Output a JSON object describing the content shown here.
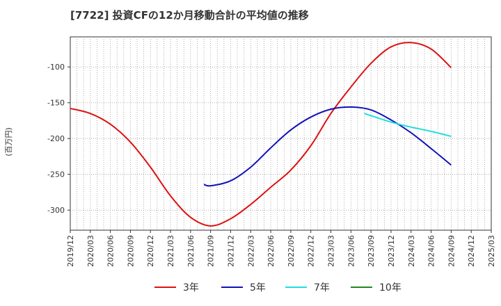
{
  "chart_data": {
    "type": "line",
    "title": "[7722]  投資CFの12か月移動合計の平均値の推移",
    "ylabel": "(百万円)",
    "xlabel": "",
    "xlim": [
      "2019/12",
      "2025/03"
    ],
    "ylim": [
      -328,
      -58
    ],
    "yticks": [
      -100,
      -150,
      -200,
      -250,
      -300
    ],
    "xticks": [
      "2019/12",
      "2020/03",
      "2020/06",
      "2020/09",
      "2020/12",
      "2021/03",
      "2021/06",
      "2021/09",
      "2021/12",
      "2022/03",
      "2022/06",
      "2022/09",
      "2022/12",
      "2023/03",
      "2023/06",
      "2023/09",
      "2023/12",
      "2024/03",
      "2024/06",
      "2024/09",
      "2024/12",
      "2025/03"
    ],
    "grid": true,
    "legend_position": "bottom",
    "series": [
      {
        "name": "3年",
        "color": "#dd1111",
        "points": [
          [
            "2019/12",
            -158
          ],
          [
            "2020/03",
            -165
          ],
          [
            "2020/06",
            -180
          ],
          [
            "2020/09",
            -205
          ],
          [
            "2020/12",
            -240
          ],
          [
            "2021/03",
            -280
          ],
          [
            "2021/06",
            -310
          ],
          [
            "2021/09",
            -322
          ],
          [
            "2021/12",
            -312
          ],
          [
            "2022/03",
            -292
          ],
          [
            "2022/06",
            -268
          ],
          [
            "2022/09",
            -244
          ],
          [
            "2022/12",
            -210
          ],
          [
            "2023/03",
            -165
          ],
          [
            "2023/06",
            -128
          ],
          [
            "2023/09",
            -95
          ],
          [
            "2023/12",
            -72
          ],
          [
            "2024/03",
            -66
          ],
          [
            "2024/06",
            -75
          ],
          [
            "2024/09",
            -101
          ]
        ]
      },
      {
        "name": "5年",
        "color": "#1111bb",
        "points": [
          [
            "2021/08",
            -264
          ],
          [
            "2021/09",
            -266
          ],
          [
            "2021/12",
            -259
          ],
          [
            "2022/03",
            -240
          ],
          [
            "2022/06",
            -213
          ],
          [
            "2022/09",
            -188
          ],
          [
            "2022/12",
            -170
          ],
          [
            "2023/03",
            -159
          ],
          [
            "2023/06",
            -156
          ],
          [
            "2023/09",
            -160
          ],
          [
            "2023/12",
            -174
          ],
          [
            "2024/03",
            -192
          ],
          [
            "2024/06",
            -214
          ],
          [
            "2024/09",
            -237
          ]
        ]
      },
      {
        "name": "7年",
        "color": "#22dddd",
        "points": [
          [
            "2023/08",
            -165
          ],
          [
            "2023/12",
            -177
          ],
          [
            "2024/03",
            -184
          ],
          [
            "2024/06",
            -190
          ],
          [
            "2024/09",
            -197
          ]
        ]
      },
      {
        "name": "10年",
        "color": "#228822",
        "points": []
      }
    ]
  }
}
